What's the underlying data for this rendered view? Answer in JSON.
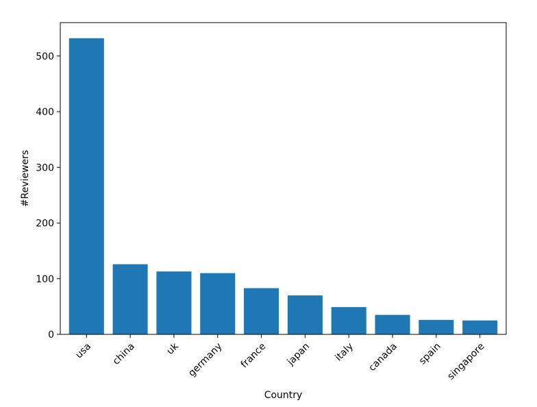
{
  "chart_data": {
    "type": "bar",
    "title": "",
    "xlabel": "Country",
    "ylabel": "#Reviewers",
    "categories": [
      "usa",
      "china",
      "uk",
      "germany",
      "france",
      "japan",
      "italy",
      "canada",
      "spain",
      "singapore"
    ],
    "values": [
      532,
      126,
      113,
      110,
      83,
      70,
      49,
      35,
      26,
      25
    ],
    "ylim": [
      0,
      560
    ],
    "yticks": [
      0,
      100,
      200,
      300,
      400,
      500
    ],
    "grid": false,
    "legend": "none",
    "colors": {
      "bar": "#1f77b4",
      "axis": "#000000",
      "background": "#ffffff"
    }
  }
}
